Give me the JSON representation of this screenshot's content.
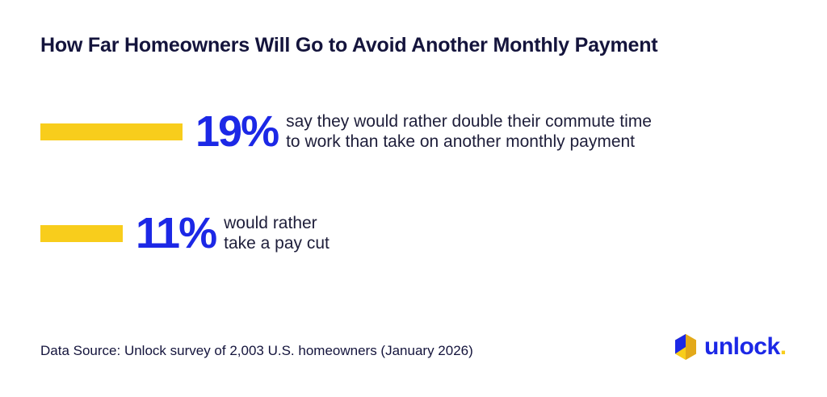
{
  "title": "How Far Homeowners Will Go to Avoid Another Monthly Payment",
  "colors": {
    "bar": "#F8CD1C",
    "accent": "#1C28E6",
    "title": "#14143C",
    "logo_yellow": "#F8CD1C",
    "logo_dark": "#E3A91A"
  },
  "stats": [
    {
      "value": "19%",
      "desc_lines": [
        "say they would rather double their commute time",
        "to work than take on another monthly payment"
      ]
    },
    {
      "value": "11%",
      "desc_lines": [
        "would rather",
        "take a pay cut"
      ]
    }
  ],
  "source": "Data Source: Unlock survey of 2,003 U.S. homeowners (January 2026)",
  "brand": {
    "name": "unlock",
    "dot": ".",
    "icon": "hexagon-logo-icon"
  },
  "chart_data": {
    "type": "bar",
    "orientation": "horizontal",
    "categories": [
      "say they would rather double their commute time to work than take on another monthly payment",
      "would rather take a pay cut"
    ],
    "values": [
      19,
      11
    ],
    "unit": "%",
    "title": "How Far Homeowners Will Go to Avoid Another Monthly Payment",
    "grid": false
  }
}
